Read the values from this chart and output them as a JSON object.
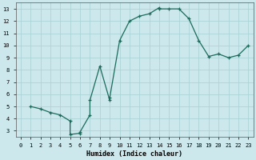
{
  "xlabel": "Humidex (Indice chaleur)",
  "bg_color": "#cce8ec",
  "line_color": "#1a6b5a",
  "grid_color": "#a8d0d4",
  "xlim": [
    -0.5,
    23.5
  ],
  "ylim": [
    2.5,
    13.5
  ],
  "xticks": [
    0,
    1,
    2,
    3,
    4,
    5,
    6,
    7,
    8,
    9,
    10,
    11,
    12,
    13,
    14,
    15,
    16,
    17,
    18,
    19,
    20,
    21,
    22,
    23
  ],
  "yticks": [
    3,
    4,
    5,
    6,
    7,
    8,
    9,
    10,
    11,
    12,
    13
  ],
  "points": [
    [
      1,
      5.0
    ],
    [
      2,
      4.8
    ],
    [
      3,
      4.5
    ],
    [
      4,
      4.3
    ],
    [
      5,
      3.8
    ],
    [
      5,
      2.7
    ],
    [
      6,
      2.8
    ],
    [
      6,
      2.9
    ],
    [
      7,
      4.3
    ],
    [
      7,
      5.5
    ],
    [
      8,
      8.3
    ],
    [
      9,
      5.5
    ],
    [
      9,
      5.7
    ],
    [
      10,
      10.4
    ],
    [
      11,
      12.0
    ],
    [
      12,
      12.4
    ],
    [
      13,
      12.6
    ],
    [
      14,
      13.1
    ],
    [
      14,
      13.0
    ],
    [
      15,
      13.0
    ],
    [
      16,
      13.0
    ],
    [
      17,
      12.2
    ],
    [
      18,
      10.4
    ],
    [
      19,
      9.1
    ],
    [
      20,
      9.3
    ],
    [
      21,
      9.0
    ],
    [
      22,
      9.2
    ],
    [
      23,
      10.0
    ]
  ]
}
